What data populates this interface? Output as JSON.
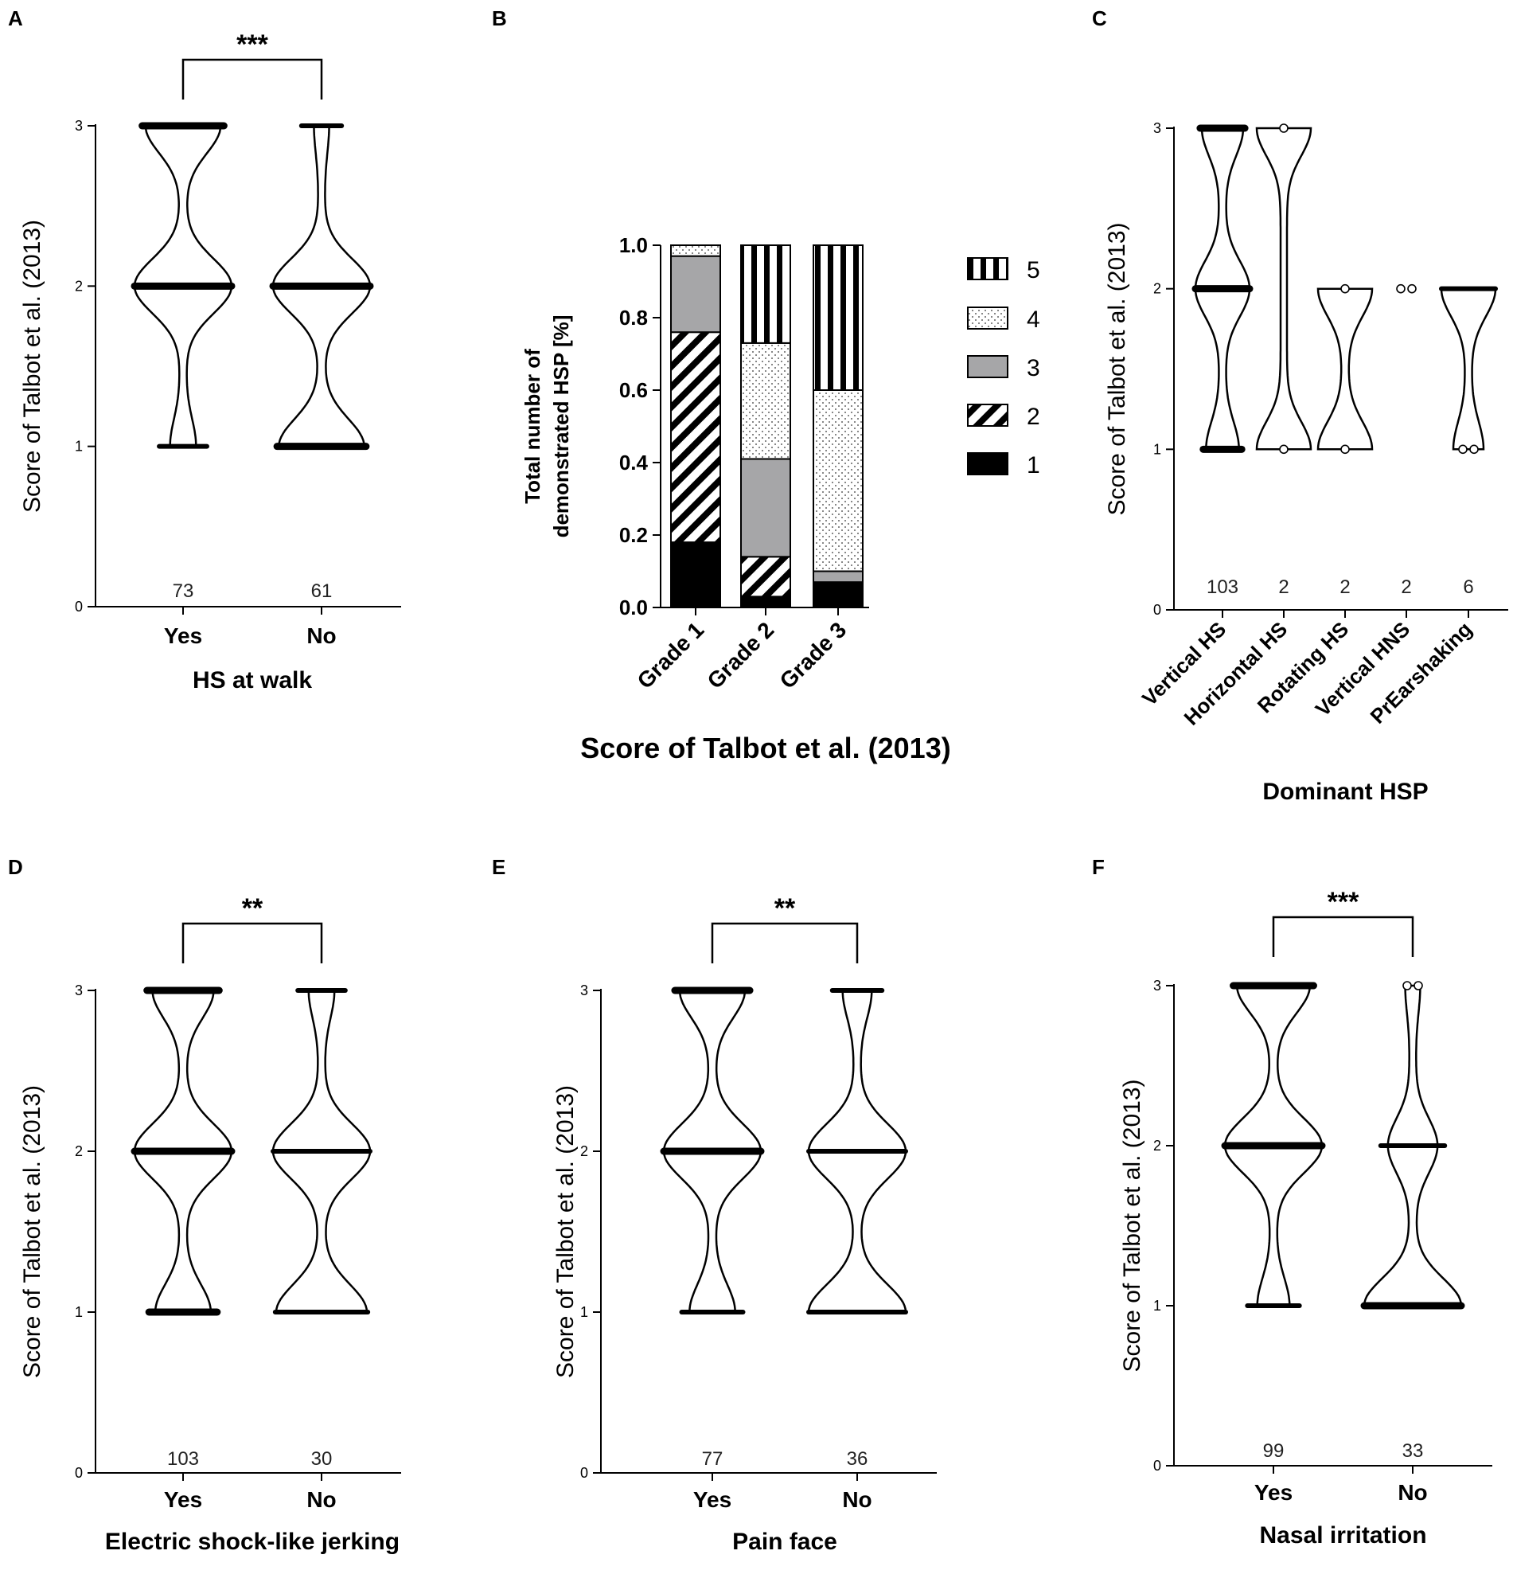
{
  "figure": {
    "y_axis_label": "Score of  Talbot et al. (2013)",
    "y_ticks": [
      "0",
      "1",
      "2",
      "3"
    ]
  },
  "chart_data": [
    {
      "panel": "A",
      "type": "violin",
      "xlabel": "HS at walk",
      "ylabel": "Score of  Talbot et al. (2013)",
      "ylim": [
        0,
        3
      ],
      "significance": "***",
      "categories": [
        "Yes",
        "No"
      ],
      "n": [
        "73",
        "61"
      ],
      "groups": [
        {
          "name": "Yes",
          "counts": {
            "1": 8,
            "2": 37,
            "3": 28
          }
        },
        {
          "name": "No",
          "counts": {
            "1": 27,
            "2": 31,
            "3": 3
          }
        }
      ]
    },
    {
      "panel": "B",
      "type": "stacked_bar",
      "xlabel": "Score of Talbot et al. (2013)",
      "ylabel_line1": "Total number of",
      "ylabel_line2": "demonstrated HSP [%]",
      "ylim": [
        0,
        1.0
      ],
      "y_ticks": [
        "0.0",
        "0.2",
        "0.4",
        "0.6",
        "0.8",
        "1.0"
      ],
      "categories": [
        "Grade 1",
        "Grade 2",
        "Grade 3"
      ],
      "legend": [
        "5",
        "4",
        "3",
        "2",
        "1"
      ],
      "series": [
        {
          "name": "1",
          "values": [
            0.18,
            0.03,
            0.07
          ]
        },
        {
          "name": "2",
          "values": [
            0.58,
            0.11,
            0.0
          ]
        },
        {
          "name": "3",
          "values": [
            0.21,
            0.27,
            0.03
          ]
        },
        {
          "name": "4",
          "values": [
            0.03,
            0.32,
            0.5
          ]
        },
        {
          "name": "5",
          "values": [
            0.0,
            0.27,
            0.4
          ]
        }
      ]
    },
    {
      "panel": "C",
      "type": "violin",
      "xlabel": "Dominant HSP",
      "ylabel": "Score of  Talbot et al. (2013)",
      "ylim": [
        0,
        3
      ],
      "categories": [
        "Vertical HS",
        "Horizontal HS",
        "Rotating HS",
        "Vertical HNS",
        "PrEarshaking"
      ],
      "n": [
        "103",
        "2",
        "2",
        "2",
        "6"
      ],
      "groups": [
        {
          "name": "Vertical HS",
          "counts": {
            "1": 25,
            "2": 45,
            "3": 33
          }
        },
        {
          "name": "Horizontal HS",
          "counts": {
            "1": 1,
            "3": 1
          }
        },
        {
          "name": "Rotating HS",
          "counts": {
            "1": 1,
            "2": 1
          }
        },
        {
          "name": "Vertical HNS",
          "counts": {
            "2": 2
          }
        },
        {
          "name": "PrEarshaking",
          "counts": {
            "1": 2,
            "2": 4
          }
        }
      ]
    },
    {
      "panel": "D",
      "type": "violin",
      "xlabel": "Electric shock-like jerking",
      "ylabel": "Score of  Talbot et al. (2013)",
      "ylim": [
        0,
        3
      ],
      "significance": "**",
      "categories": [
        "Yes",
        "No"
      ],
      "n": [
        "103",
        "30"
      ],
      "groups": [
        {
          "name": "Yes",
          "counts": {
            "1": 26,
            "2": 48,
            "3": 29
          }
        },
        {
          "name": "No",
          "counts": {
            "1": 13,
            "2": 14,
            "3": 3
          }
        }
      ]
    },
    {
      "panel": "E",
      "type": "violin",
      "xlabel": "Pain face",
      "ylabel": "Score of  Talbot et al. (2013)",
      "ylim": [
        0,
        3
      ],
      "significance": "**",
      "categories": [
        "Yes",
        "No"
      ],
      "n": [
        "77",
        "36"
      ],
      "groups": [
        {
          "name": "Yes",
          "counts": {
            "1": 16,
            "2": 37,
            "3": 24
          }
        },
        {
          "name": "No",
          "counts": {
            "1": 16,
            "2": 16,
            "3": 4
          }
        }
      ]
    },
    {
      "panel": "F",
      "type": "violin",
      "xlabel": "Nasal irritation",
      "ylabel": "Score of  Talbot et al. (2013)",
      "ylim": [
        0,
        3
      ],
      "significance": "***",
      "categories": [
        "Yes",
        "No"
      ],
      "n": [
        "99",
        "33"
      ],
      "groups": [
        {
          "name": "Yes",
          "counts": {
            "1": 14,
            "2": 49,
            "3": 36
          }
        },
        {
          "name": "No",
          "counts": {
            "1": 21,
            "2": 10,
            "3": 2
          }
        }
      ]
    }
  ]
}
